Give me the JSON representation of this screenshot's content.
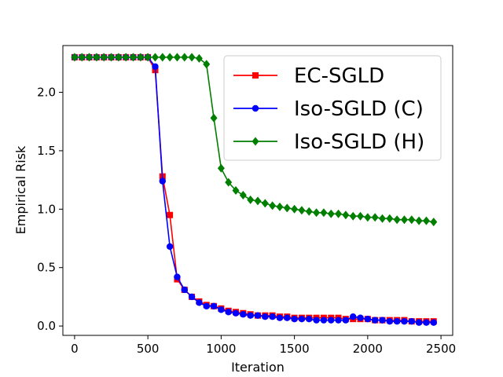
{
  "chart_data": {
    "type": "line",
    "title": "",
    "xlabel": "Iteration",
    "ylabel": "Empirical Risk",
    "xlim": [
      -80,
      2580
    ],
    "ylim": [
      -0.08,
      2.4
    ],
    "xticks": [
      0,
      500,
      1000,
      1500,
      2000,
      2500
    ],
    "yticks": [
      0.0,
      0.5,
      1.0,
      1.5,
      2.0
    ],
    "ytick_labels": [
      "0.0",
      "0.5",
      "1.0",
      "1.5",
      "2.0"
    ],
    "grid": false,
    "legend_position": "top-right",
    "series": [
      {
        "name": "EC-SGLD",
        "color": "#ff0000",
        "marker": "square",
        "x": [
          0,
          50,
          100,
          150,
          200,
          250,
          300,
          350,
          400,
          450,
          500,
          550,
          600,
          650,
          700,
          750,
          800,
          850,
          900,
          950,
          1000,
          1050,
          1100,
          1150,
          1200,
          1250,
          1300,
          1350,
          1400,
          1450,
          1500,
          1550,
          1600,
          1650,
          1700,
          1750,
          1800,
          1850,
          1900,
          1950,
          2000,
          2050,
          2100,
          2150,
          2200,
          2250,
          2300,
          2350,
          2400,
          2450
        ],
        "y": [
          2.3,
          2.3,
          2.3,
          2.3,
          2.3,
          2.3,
          2.3,
          2.3,
          2.3,
          2.3,
          2.3,
          2.19,
          1.28,
          0.95,
          0.4,
          0.31,
          0.25,
          0.21,
          0.18,
          0.17,
          0.15,
          0.13,
          0.12,
          0.11,
          0.1,
          0.09,
          0.09,
          0.09,
          0.08,
          0.08,
          0.07,
          0.07,
          0.07,
          0.07,
          0.07,
          0.07,
          0.07,
          0.06,
          0.06,
          0.06,
          0.06,
          0.05,
          0.05,
          0.05,
          0.05,
          0.05,
          0.04,
          0.04,
          0.04,
          0.04
        ]
      },
      {
        "name": "Iso-SGLD (C)",
        "color": "#0000ff",
        "marker": "circle",
        "x": [
          0,
          50,
          100,
          150,
          200,
          250,
          300,
          350,
          400,
          450,
          500,
          550,
          600,
          650,
          700,
          750,
          800,
          850,
          900,
          950,
          1000,
          1050,
          1100,
          1150,
          1200,
          1250,
          1300,
          1350,
          1400,
          1450,
          1500,
          1550,
          1600,
          1650,
          1700,
          1750,
          1800,
          1850,
          1900,
          1950,
          2000,
          2050,
          2100,
          2150,
          2200,
          2250,
          2300,
          2350,
          2400,
          2450
        ],
        "y": [
          2.3,
          2.3,
          2.3,
          2.3,
          2.3,
          2.3,
          2.3,
          2.3,
          2.3,
          2.3,
          2.3,
          2.22,
          1.24,
          0.68,
          0.42,
          0.31,
          0.25,
          0.2,
          0.17,
          0.17,
          0.14,
          0.12,
          0.11,
          0.1,
          0.09,
          0.09,
          0.08,
          0.08,
          0.07,
          0.07,
          0.06,
          0.06,
          0.06,
          0.05,
          0.05,
          0.05,
          0.05,
          0.05,
          0.08,
          0.07,
          0.06,
          0.05,
          0.05,
          0.04,
          0.04,
          0.04,
          0.04,
          0.03,
          0.03,
          0.03
        ]
      },
      {
        "name": "Iso-SGLD (H)",
        "color": "#007f00",
        "marker": "diamond",
        "x": [
          0,
          50,
          100,
          150,
          200,
          250,
          300,
          350,
          400,
          450,
          500,
          550,
          600,
          650,
          700,
          750,
          800,
          850,
          900,
          950,
          1000,
          1050,
          1100,
          1150,
          1200,
          1250,
          1300,
          1350,
          1400,
          1450,
          1500,
          1550,
          1600,
          1650,
          1700,
          1750,
          1800,
          1850,
          1900,
          1950,
          2000,
          2050,
          2100,
          2150,
          2200,
          2250,
          2300,
          2350,
          2400,
          2450
        ],
        "y": [
          2.3,
          2.3,
          2.3,
          2.3,
          2.3,
          2.3,
          2.3,
          2.3,
          2.3,
          2.3,
          2.3,
          2.3,
          2.3,
          2.3,
          2.3,
          2.3,
          2.3,
          2.29,
          2.24,
          1.78,
          1.35,
          1.23,
          1.16,
          1.12,
          1.08,
          1.07,
          1.05,
          1.03,
          1.02,
          1.01,
          1.0,
          0.99,
          0.98,
          0.97,
          0.97,
          0.96,
          0.96,
          0.95,
          0.94,
          0.94,
          0.93,
          0.93,
          0.92,
          0.92,
          0.91,
          0.91,
          0.91,
          0.9,
          0.9,
          0.89
        ]
      }
    ]
  }
}
